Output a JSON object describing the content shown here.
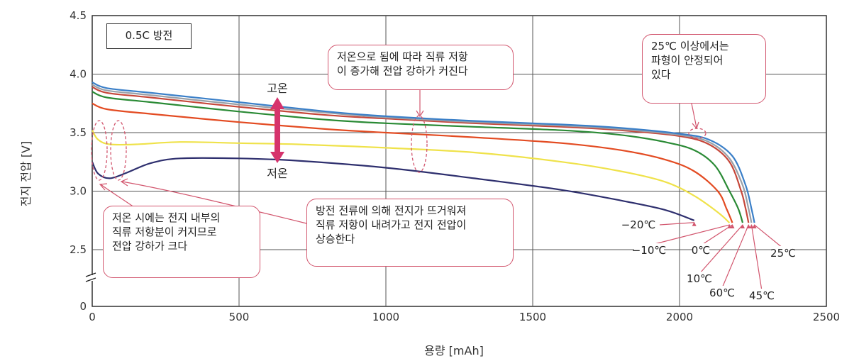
{
  "chart_data": {
    "type": "line",
    "title": "",
    "condition_label": "0.5C 방전",
    "xlabel": "용량 [mAh]",
    "ylabel": "전지 전압 [V]",
    "xlim": [
      0,
      2500
    ],
    "ylim": [
      0,
      4.5
    ],
    "y_axis_break": [
      0,
      2.5
    ],
    "x_ticks": [
      0,
      500,
      1000,
      1500,
      2000,
      2500
    ],
    "x_tick_labels": [
      "0",
      "500",
      "1000",
      "1500",
      "2000",
      "2500"
    ],
    "y_ticks": [
      0,
      2.5,
      3.0,
      3.5,
      4.0,
      4.5
    ],
    "y_tick_labels": [
      "0",
      "2.5",
      "3.0",
      "3.5",
      "4.0",
      "4.5"
    ],
    "grid": true,
    "series": [
      {
        "name": "−20℃",
        "color": "#2e2f6e",
        "points": [
          [
            0,
            3.25
          ],
          [
            20,
            3.15
          ],
          [
            60,
            3.11
          ],
          [
            120,
            3.16
          ],
          [
            200,
            3.24
          ],
          [
            300,
            3.28
          ],
          [
            500,
            3.28
          ],
          [
            700,
            3.26
          ],
          [
            1000,
            3.2
          ],
          [
            1300,
            3.11
          ],
          [
            1600,
            3.01
          ],
          [
            1800,
            2.92
          ],
          [
            1950,
            2.84
          ],
          [
            2050,
            2.75
          ]
        ]
      },
      {
        "name": "−10℃",
        "color": "#efe24a",
        "points": [
          [
            0,
            3.52
          ],
          [
            20,
            3.44
          ],
          [
            60,
            3.4
          ],
          [
            150,
            3.4
          ],
          [
            300,
            3.42
          ],
          [
            500,
            3.41
          ],
          [
            700,
            3.4
          ],
          [
            1000,
            3.37
          ],
          [
            1300,
            3.33
          ],
          [
            1600,
            3.25
          ],
          [
            1800,
            3.17
          ],
          [
            1950,
            3.08
          ],
          [
            2050,
            2.96
          ],
          [
            2130,
            2.82
          ],
          [
            2170,
            2.73
          ]
        ]
      },
      {
        "name": "0℃",
        "color": "#e34b22",
        "points": [
          [
            0,
            3.75
          ],
          [
            50,
            3.7
          ],
          [
            200,
            3.66
          ],
          [
            500,
            3.59
          ],
          [
            800,
            3.53
          ],
          [
            1000,
            3.5
          ],
          [
            1300,
            3.46
          ],
          [
            1600,
            3.41
          ],
          [
            1800,
            3.35
          ],
          [
            1950,
            3.27
          ],
          [
            2050,
            3.17
          ],
          [
            2130,
            3.0
          ],
          [
            2160,
            2.85
          ],
          [
            2180,
            2.73
          ]
        ]
      },
      {
        "name": "10℃",
        "color": "#2a8a35",
        "points": [
          [
            0,
            3.85
          ],
          [
            50,
            3.8
          ],
          [
            200,
            3.76
          ],
          [
            500,
            3.68
          ],
          [
            800,
            3.61
          ],
          [
            1000,
            3.58
          ],
          [
            1300,
            3.55
          ],
          [
            1600,
            3.52
          ],
          [
            1800,
            3.48
          ],
          [
            1950,
            3.42
          ],
          [
            2050,
            3.35
          ],
          [
            2120,
            3.22
          ],
          [
            2170,
            3.0
          ],
          [
            2200,
            2.85
          ],
          [
            2215,
            2.73
          ]
        ]
      },
      {
        "name": "60℃",
        "color": "#c6473a",
        "points": [
          [
            0,
            3.89
          ],
          [
            50,
            3.84
          ],
          [
            200,
            3.8
          ],
          [
            500,
            3.72
          ],
          [
            800,
            3.65
          ],
          [
            1000,
            3.62
          ],
          [
            1300,
            3.58
          ],
          [
            1600,
            3.55
          ],
          [
            1800,
            3.52
          ],
          [
            2000,
            3.47
          ],
          [
            2100,
            3.4
          ],
          [
            2170,
            3.25
          ],
          [
            2210,
            3.0
          ],
          [
            2225,
            2.85
          ],
          [
            2235,
            2.73
          ]
        ]
      },
      {
        "name": "45℃",
        "color": "#9aa0a8",
        "points": [
          [
            0,
            3.91
          ],
          [
            50,
            3.86
          ],
          [
            200,
            3.82
          ],
          [
            500,
            3.74
          ],
          [
            800,
            3.67
          ],
          [
            1000,
            3.63
          ],
          [
            1300,
            3.59
          ],
          [
            1600,
            3.56
          ],
          [
            1800,
            3.53
          ],
          [
            2000,
            3.48
          ],
          [
            2100,
            3.42
          ],
          [
            2170,
            3.28
          ],
          [
            2215,
            3.05
          ],
          [
            2235,
            2.85
          ],
          [
            2245,
            2.73
          ]
        ]
      },
      {
        "name": "25℃",
        "color": "#3a7fc8",
        "points": [
          [
            0,
            3.93
          ],
          [
            50,
            3.88
          ],
          [
            200,
            3.84
          ],
          [
            500,
            3.76
          ],
          [
            800,
            3.68
          ],
          [
            1000,
            3.64
          ],
          [
            1300,
            3.6
          ],
          [
            1600,
            3.57
          ],
          [
            1800,
            3.54
          ],
          [
            2000,
            3.49
          ],
          [
            2100,
            3.44
          ],
          [
            2180,
            3.3
          ],
          [
            2225,
            3.05
          ],
          [
            2245,
            2.85
          ],
          [
            2255,
            2.73
          ]
        ]
      }
    ]
  },
  "arrow": {
    "top_label": "고온",
    "bottom_label": "저온",
    "color": "#d6336c"
  },
  "annotations": {
    "top_middle": "저온으로 됨에 따라 직류 저항\n이 증가해 전압 강하가 커진다",
    "top_right": "25℃ 이상에서는\n파형이 안정되어\n있다",
    "bottom_left": "저온 시에는 전지 내부의\n직류 저항분이 커지므로\n전압 강하가 크다",
    "bottom_middle": "방전 전류에 의해 전지가 뜨거워져\n직류 저항이 내려가고 전지 전압이\n상승한다"
  },
  "accent_color": "#d2566e"
}
